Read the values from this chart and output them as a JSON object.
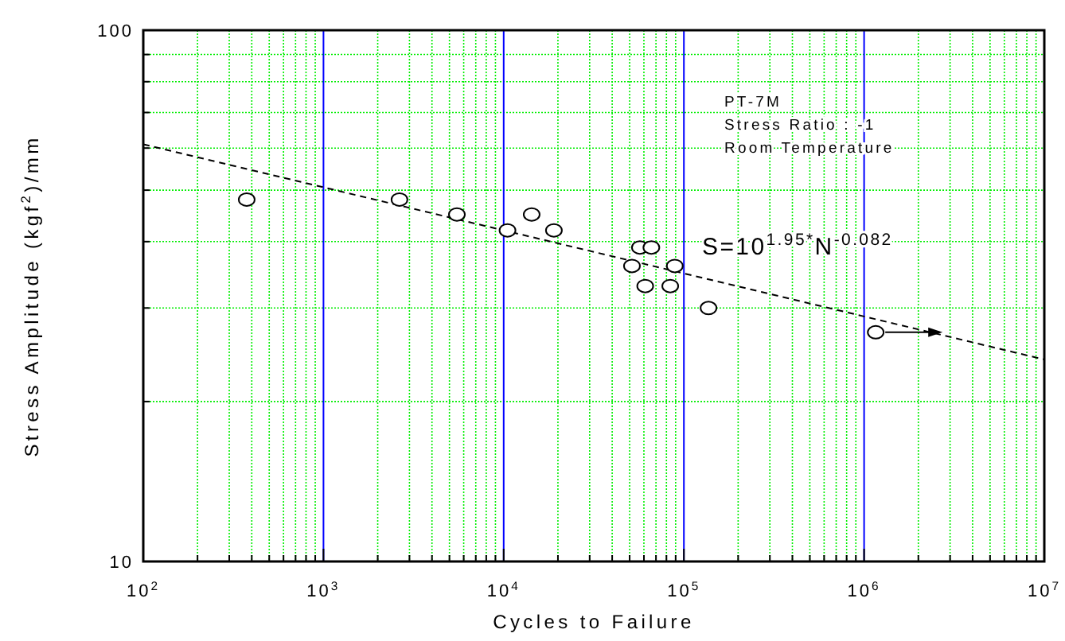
{
  "chart_data": {
    "type": "scatter",
    "xlabel": "Cycles to Failure",
    "ylabel": "Stress Amplitude (kgf$^{2}$)/mm",
    "log": "xy",
    "grid": true,
    "marker": "circle",
    "xlim": [
      100,
      10000000
    ],
    "ylim": [
      10,
      100
    ],
    "xticks": [
      {
        "value": 100,
        "label": "10$^{2}$"
      },
      {
        "value": 200,
        "label": null
      },
      {
        "value": 300,
        "label": null
      },
      {
        "value": 400,
        "label": null
      },
      {
        "value": 500,
        "label": null
      },
      {
        "value": 600,
        "label": null
      },
      {
        "value": 700,
        "label": null
      },
      {
        "value": 800,
        "label": null
      },
      {
        "value": 900,
        "label": null
      },
      {
        "value": 1000,
        "label": "10$^{3}$"
      },
      {
        "value": 2000,
        "label": null
      },
      {
        "value": 3000,
        "label": null
      },
      {
        "value": 4000,
        "label": null
      },
      {
        "value": 5000,
        "label": null
      },
      {
        "value": 6000,
        "label": null
      },
      {
        "value": 7000,
        "label": null
      },
      {
        "value": 8000,
        "label": null
      },
      {
        "value": 9000,
        "label": null
      },
      {
        "value": 10000,
        "label": "10$^{4}$"
      },
      {
        "value": 20000,
        "label": null
      },
      {
        "value": 30000,
        "label": null
      },
      {
        "value": 40000,
        "label": null
      },
      {
        "value": 50000,
        "label": null
      },
      {
        "value": 60000,
        "label": null
      },
      {
        "value": 70000,
        "label": null
      },
      {
        "value": 80000,
        "label": null
      },
      {
        "value": 90000,
        "label": null
      },
      {
        "value": 100000,
        "label": "10$^{5}$"
      },
      {
        "value": 200000,
        "label": null
      },
      {
        "value": 300000,
        "label": null
      },
      {
        "value": 400000,
        "label": null
      },
      {
        "value": 500000,
        "label": null
      },
      {
        "value": 600000,
        "label": null
      },
      {
        "value": 700000,
        "label": null
      },
      {
        "value": 800000,
        "label": null
      },
      {
        "value": 900000,
        "label": null
      },
      {
        "value": 1000000,
        "label": "10$^{6}$"
      },
      {
        "value": 2000000,
        "label": null
      },
      {
        "value": 3000000,
        "label": null
      },
      {
        "value": 4000000,
        "label": null
      },
      {
        "value": 5000000,
        "label": null
      },
      {
        "value": 6000000,
        "label": null
      },
      {
        "value": 7000000,
        "label": null
      },
      {
        "value": 8000000,
        "label": null
      },
      {
        "value": 9000000,
        "label": null
      },
      {
        "value": 10000000,
        "label": "10$^{7}$"
      }
    ],
    "yticks": [
      10,
      {
        "value": 20,
        "label": null
      },
      {
        "value": 30,
        "label": null
      },
      {
        "value": 40,
        "label": null
      },
      {
        "value": 50,
        "label": null
      },
      {
        "value": 60,
        "label": null
      },
      {
        "value": 70,
        "label": null
      },
      {
        "value": 80,
        "label": null
      },
      {
        "value": 90,
        "label": null
      },
      100
    ],
    "annotations": [
      "PT-7M",
      "Stress Ratio : -1",
      "Room Temperature",
      "S=10$^{1.95*}$N$^{-0.082}$"
    ],
    "series": [
      {
        "color": "#000000",
        "x": [
          375,
          2640,
          5500,
          10500,
          14300,
          19000,
          57000,
          66000,
          51500,
          89000,
          61000,
          84000,
          137000,
          1160000
        ],
        "values": [
          48,
          48,
          45,
          42,
          45,
          42,
          39,
          39,
          36,
          36,
          33,
          33,
          30,
          27
        ]
      },
      {
        "type": "line",
        "color": "#000000",
        "line_style": "dashed",
        "marker": "none",
        "x": [
          100,
          10000000
        ],
        "values": [
          61,
          24
        ]
      }
    ]
  }
}
